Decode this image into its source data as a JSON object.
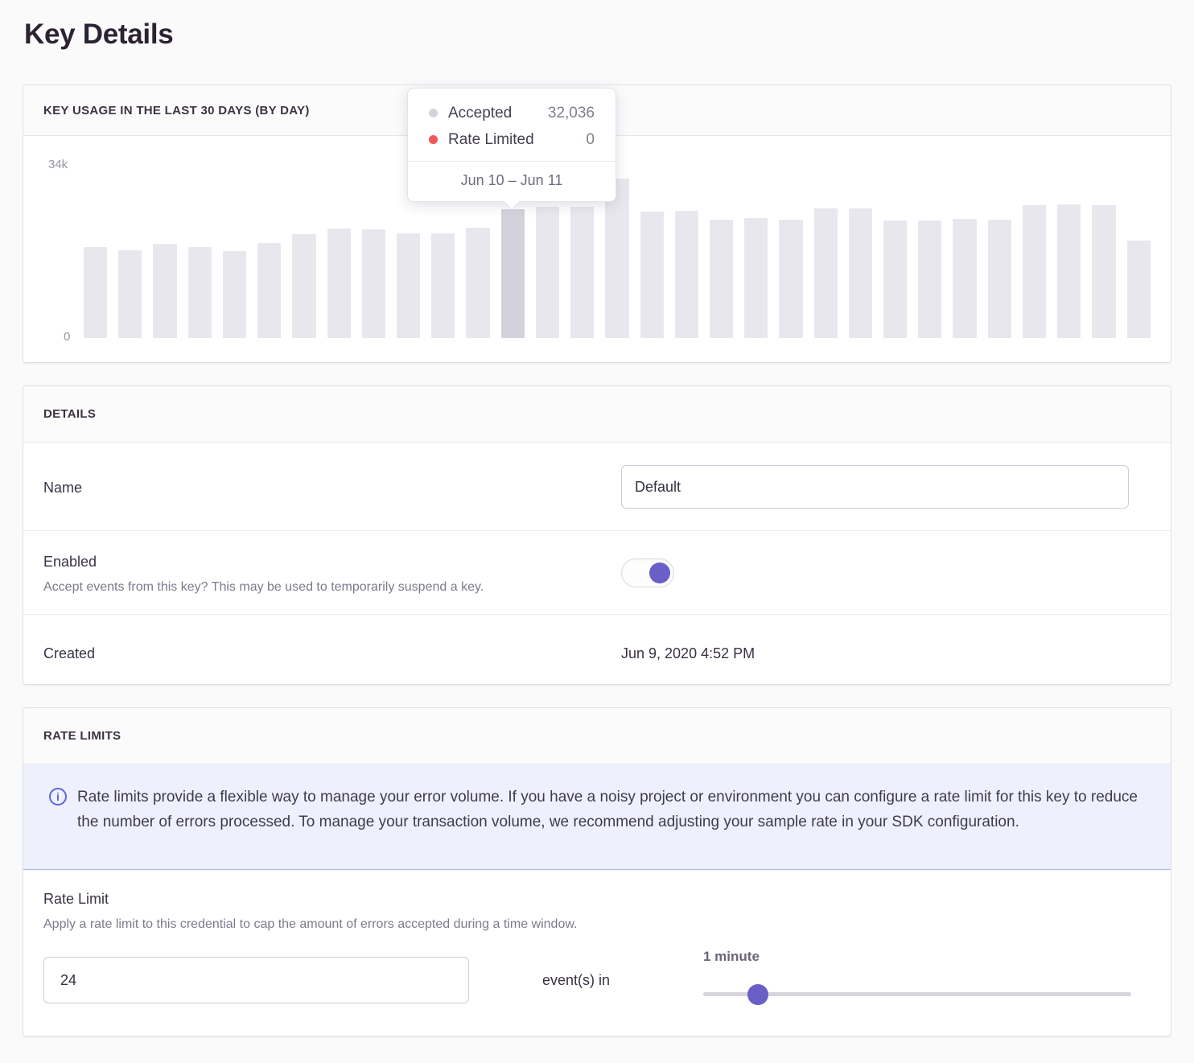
{
  "page": {
    "title": "Key Details"
  },
  "colors": {
    "accent_purple": "#6a5ec7",
    "bar": "#e9e7ee",
    "bar_highlight": "#d4d1dd",
    "accepted_dot_gray": "#d5d2dd",
    "rate_limited_red": "#f2555a",
    "info_accent": "#5a66e0",
    "alert_bg": "#eef1fb"
  },
  "chart_data": {
    "type": "bar",
    "title": "KEY USAGE IN THE LAST 30 DAYS (BY DAY)",
    "ylim": [
      0,
      34000
    ],
    "y_tick_labels": [
      "34k",
      "0"
    ],
    "x_tick_labels_visible": false,
    "grid": false,
    "values": [
      17900,
      17200,
      18500,
      17900,
      17100,
      18700,
      20400,
      21500,
      21400,
      20600,
      20600,
      21700,
      25300,
      25800,
      25800,
      31300,
      24800,
      25000,
      23200,
      23600,
      23200,
      25500,
      25500,
      23100,
      23100,
      23400,
      23200,
      26100,
      26300,
      26100,
      19100
    ],
    "highlight_index": 12,
    "legend": [
      "Accepted",
      "Rate Limited"
    ]
  },
  "usage_panel": {
    "header": "KEY USAGE IN THE LAST 30 DAYS (BY DAY)",
    "y_max_label": "34k",
    "y_zero_label": "0",
    "tooltip": {
      "rows": [
        {
          "label": "Accepted",
          "value": "32,036",
          "dot_color": "#d5d2dd"
        },
        {
          "label": "Rate Limited",
          "value": "0",
          "dot_color": "#f2555a"
        }
      ],
      "date_range": "Jun 10 – Jun 11"
    }
  },
  "details_panel": {
    "header": "DETAILS",
    "name_row": {
      "label": "Name",
      "value": "Default"
    },
    "enabled_row": {
      "label": "Enabled",
      "help": "Accept events from this key? This may be used to temporarily suspend a key.",
      "value": true
    },
    "created_row": {
      "label": "Created",
      "value": "Jun 9, 2020 4:52 PM"
    }
  },
  "rate_limits_panel": {
    "header": "RATE LIMITS",
    "alert_icon": "info-icon",
    "alert_text": "Rate limits provide a flexible way to manage your error volume. If you have a noisy project or environment you can configure a rate limit for this key to reduce the number of errors processed. To manage your transaction volume, we recommend adjusting your sample rate in your SDK configuration.",
    "rate_limit_row": {
      "label": "Rate Limit",
      "help": "Apply a rate limit to this credential to cap the amount of errors accepted during a time window.",
      "count_value": "24",
      "connector_text": "event(s) in",
      "window_label": "1 minute",
      "slider_percent": 12.8
    }
  }
}
